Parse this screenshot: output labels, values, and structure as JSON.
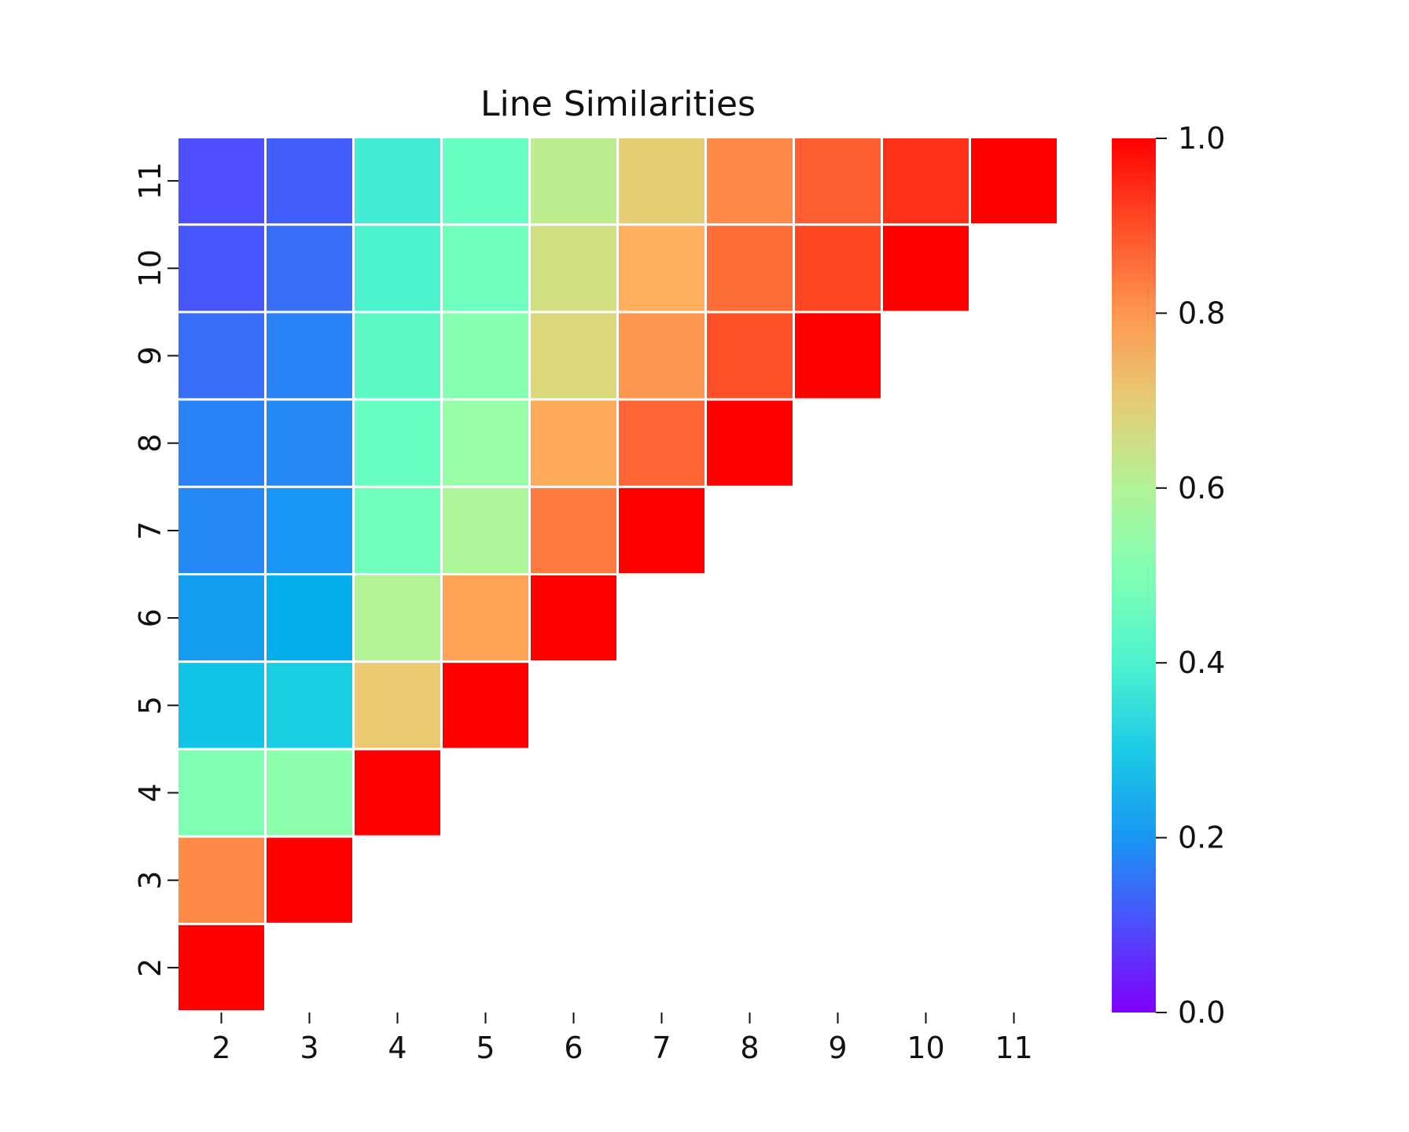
{
  "chart_data": {
    "type": "heatmap",
    "title": "Line Similarities",
    "xlabel": "",
    "ylabel": "",
    "x_categories": [
      "2",
      "3",
      "4",
      "5",
      "6",
      "7",
      "8",
      "9",
      "10",
      "11"
    ],
    "y_categories": [
      "2",
      "3",
      "4",
      "5",
      "6",
      "7",
      "8",
      "9",
      "10",
      "11"
    ],
    "rows": [
      {
        "y": "11",
        "values": [
          0.1,
          0.12,
          0.38,
          0.45,
          0.62,
          0.7,
          0.82,
          0.88,
          0.94,
          1.0
        ]
      },
      {
        "y": "10",
        "values": [
          0.11,
          0.14,
          0.4,
          0.47,
          0.66,
          0.76,
          0.86,
          0.91,
          1.0
        ]
      },
      {
        "y": "9",
        "values": [
          0.14,
          0.17,
          0.43,
          0.51,
          0.68,
          0.8,
          0.9,
          1.0
        ]
      },
      {
        "y": "8",
        "values": [
          0.17,
          0.18,
          0.45,
          0.55,
          0.77,
          0.87,
          1.0
        ]
      },
      {
        "y": "7",
        "values": [
          0.18,
          0.2,
          0.47,
          0.59,
          0.84,
          1.0
        ]
      },
      {
        "y": "6",
        "values": [
          0.21,
          0.24,
          0.6,
          0.78,
          1.0
        ]
      },
      {
        "y": "5",
        "values": [
          0.28,
          0.3,
          0.71,
          1.0
        ]
      },
      {
        "y": "4",
        "values": [
          0.5,
          0.53,
          1.0
        ]
      },
      {
        "y": "3",
        "values": [
          0.82,
          1.0
        ]
      },
      {
        "y": "2",
        "values": [
          1.0
        ]
      }
    ],
    "colorbar": {
      "range": [
        0.0,
        1.0
      ],
      "ticks": [
        "0.0",
        "0.2",
        "0.4",
        "0.6",
        "0.8",
        "1.0"
      ],
      "colormap": "rainbow"
    },
    "grid": false
  }
}
